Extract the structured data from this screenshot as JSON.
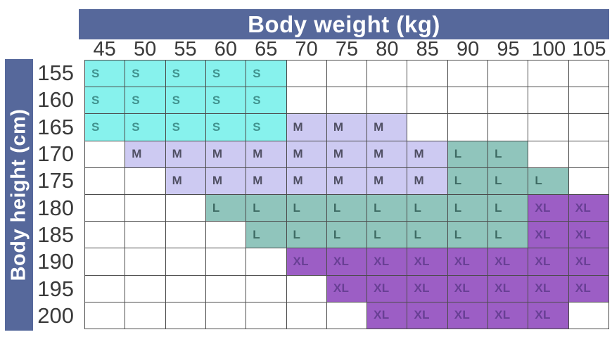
{
  "header": {
    "title": "Body weight (kg)"
  },
  "side": {
    "title": "Body height (cm)"
  },
  "colors": {
    "panel_bg": "#56689B",
    "panel_text": "#FFFFFF",
    "grid_line": "#4C4C4C",
    "axis_text": "#3A3A3A",
    "empty_cell": "#FFFFFF"
  },
  "sizes": {
    "S": {
      "label": "S",
      "bg": "#87F2ED",
      "text": "#41938F"
    },
    "M": {
      "label": "M",
      "bg": "#CDCAF2",
      "text": "#505064"
    },
    "L": {
      "label": "L",
      "bg": "#90C5BC",
      "text": "#3E6B64"
    },
    "XL": {
      "label": "XL",
      "bg": "#9C5EC5",
      "text": "#683F94"
    }
  },
  "chart_data": {
    "type": "heatmap",
    "x": [
      45,
      50,
      55,
      60,
      65,
      70,
      75,
      80,
      85,
      90,
      95,
      100,
      105
    ],
    "xlabel": "Body weight (kg)",
    "y": [
      155,
      160,
      165,
      170,
      175,
      180,
      185,
      190,
      195,
      200
    ],
    "ylabel": "Body height (cm)",
    "legend": [
      "S",
      "M",
      "L",
      "XL"
    ],
    "cells": [
      [
        "S",
        "S",
        "S",
        "S",
        "S",
        "",
        "",
        "",
        "",
        "",
        "",
        "",
        ""
      ],
      [
        "S",
        "S",
        "S",
        "S",
        "S",
        "",
        "",
        "",
        "",
        "",
        "",
        "",
        ""
      ],
      [
        "S",
        "S",
        "S",
        "S",
        "S",
        "M",
        "M",
        "M",
        "",
        "",
        "",
        "",
        ""
      ],
      [
        "",
        "M",
        "M",
        "M",
        "M",
        "M",
        "M",
        "M",
        "M",
        "L",
        "L",
        "",
        ""
      ],
      [
        "",
        "",
        "M",
        "M",
        "M",
        "M",
        "M",
        "M",
        "M",
        "L",
        "L",
        "L",
        ""
      ],
      [
        "",
        "",
        "",
        "L",
        "L",
        "L",
        "L",
        "L",
        "L",
        "L",
        "L",
        "XL",
        "XL"
      ],
      [
        "",
        "",
        "",
        "",
        "L",
        "L",
        "L",
        "L",
        "L",
        "L",
        "L",
        "XL",
        "XL"
      ],
      [
        "",
        "",
        "",
        "",
        "",
        "XL",
        "XL",
        "XL",
        "XL",
        "XL",
        "XL",
        "XL",
        "XL"
      ],
      [
        "",
        "",
        "",
        "",
        "",
        "",
        "XL",
        "XL",
        "XL",
        "XL",
        "XL",
        "XL",
        "XL"
      ],
      [
        "",
        "",
        "",
        "",
        "",
        "",
        "",
        "XL",
        "XL",
        "XL",
        "XL",
        "XL",
        ""
      ]
    ]
  }
}
